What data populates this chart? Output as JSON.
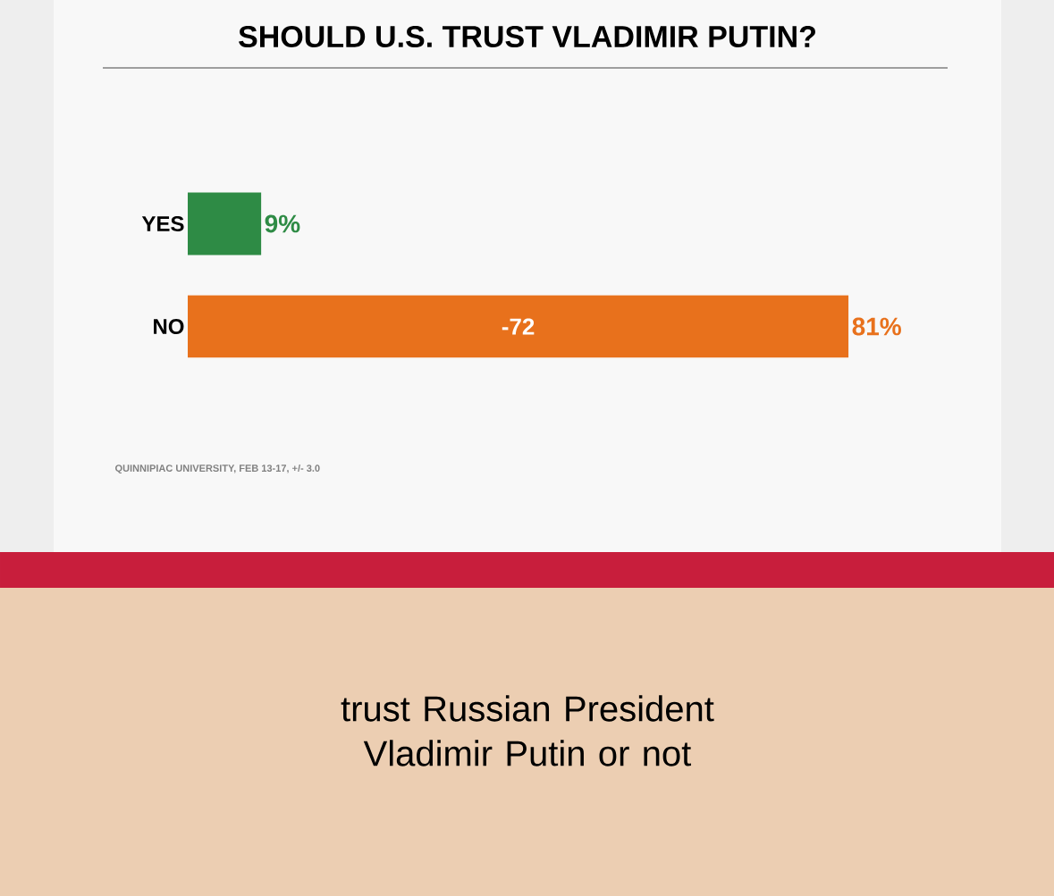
{
  "chart_data": {
    "type": "bar",
    "orientation": "horizontal",
    "title": "SHOULD U.S. TRUST VLADIMIR PUTIN?",
    "categories": [
      "YES",
      "NO"
    ],
    "values": [
      9,
      81
    ],
    "colors": [
      "#2e8b45",
      "#e8711c"
    ],
    "value_labels": [
      "9%",
      "81%"
    ],
    "annotations": [
      "-72",
      "QUINNIPIAC UNIVERSITY, FEB 13-17, +/- 3.0",
      "trust Russian President Vladimir Putin or not"
    ]
  }
}
